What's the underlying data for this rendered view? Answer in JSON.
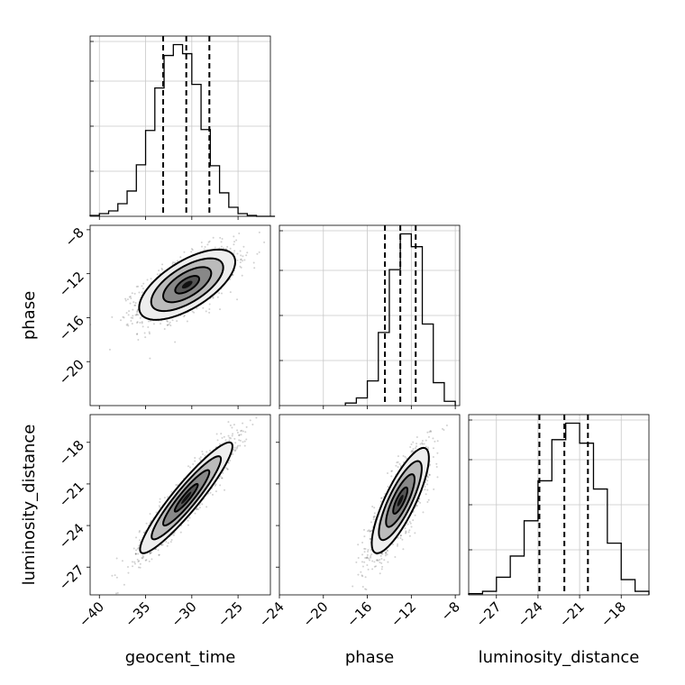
{
  "chart_data": {
    "type": "corner",
    "parameters": [
      "geocent_time",
      "phase",
      "luminosity_distance"
    ],
    "axis_labels": {
      "geocent_time": "geocent_time",
      "phase": "phase",
      "luminosity_distance": "luminosity_distance"
    },
    "ranges": {
      "geocent_time": [
        -41,
        -21.5
      ],
      "phase": [
        -24,
        -7.6
      ],
      "luminosity_distance": [
        -29,
        -16
      ]
    },
    "ticks": {
      "geocent_time": [
        -40,
        -35,
        -30,
        -25
      ],
      "phase": [
        -24,
        -20,
        -16,
        -12,
        -8
      ],
      "phase_y": [
        -8,
        -12,
        -16,
        -20
      ],
      "luminosity_distance": [
        -27,
        -24,
        -21,
        -18
      ]
    },
    "tick_labels": {
      "geocent_time": [
        "−40",
        "−35",
        "−30",
        "−25"
      ],
      "phase": [
        "−24",
        "−20",
        "−16",
        "−12",
        "−8"
      ],
      "phase_y": [
        "−8",
        "−12",
        "−16",
        "−20"
      ],
      "luminosity_distance": [
        "−27",
        "−24",
        "−21",
        "−18"
      ]
    },
    "quantiles": {
      "geocent_time": [
        -33.1,
        -30.6,
        -28.1
      ],
      "phase": [
        -14.4,
        -13.0,
        -11.6
      ],
      "luminosity_distance": [
        -23.9,
        -22.1,
        -20.4
      ]
    },
    "histograms": {
      "geocent_time": {
        "bin_edges": [
          -41,
          -40,
          -39,
          -38,
          -37,
          -36,
          -35,
          -34,
          -33,
          -32,
          -31,
          -30,
          -29,
          -28,
          -27,
          -26,
          -25,
          -24,
          -23,
          -22,
          -21
        ],
        "counts": [
          1,
          3,
          6,
          14,
          28,
          57,
          95,
          142,
          178,
          190,
          180,
          146,
          96,
          56,
          26,
          10,
          3,
          1,
          0,
          0
        ]
      },
      "phase": {
        "bin_edges": [
          -18,
          -17,
          -16,
          -15,
          -14,
          -13,
          -12,
          -11,
          -10,
          -9,
          -8
        ],
        "counts": [
          3,
          9,
          29,
          86,
          160,
          202,
          187,
          96,
          27,
          5
        ]
      },
      "luminosity_distance": {
        "bin_edges": [
          -29,
          -28,
          -27,
          -26,
          -25,
          -24,
          -23,
          -22,
          -21,
          -20,
          -19,
          -18,
          -17,
          -16
        ],
        "counts": [
          1,
          3,
          15,
          33,
          63,
          97,
          132,
          146,
          129,
          90,
          44,
          13,
          3
        ]
      }
    },
    "joint_2d": [
      {
        "x": "geocent_time",
        "y": "phase",
        "mean": [
          -30.5,
          -13.0
        ],
        "sd": [
          2.6,
          1.6
        ],
        "correlation": 0.65
      },
      {
        "x": "geocent_time",
        "y": "luminosity_distance",
        "mean": [
          -30.6,
          -22.0
        ],
        "sd": [
          2.5,
          2.0
        ],
        "correlation": 0.93
      },
      {
        "x": "phase",
        "y": "luminosity_distance",
        "mean": [
          -13.0,
          -22.2
        ],
        "sd": [
          1.3,
          1.9
        ],
        "correlation": 0.81
      }
    ]
  }
}
